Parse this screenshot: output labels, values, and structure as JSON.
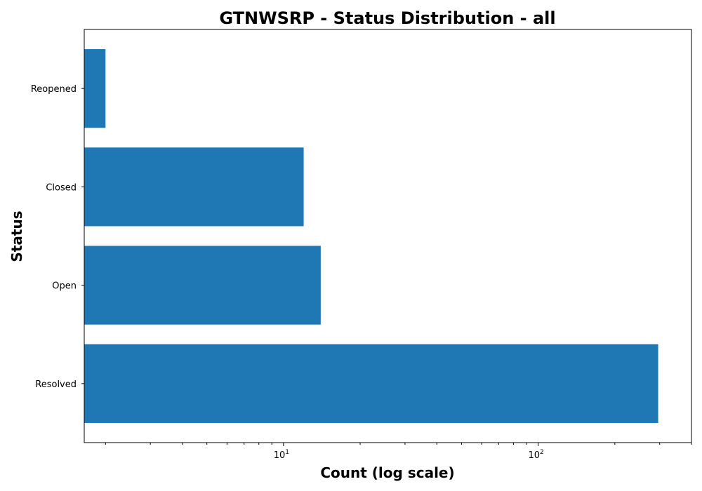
{
  "chart_data": {
    "type": "bar",
    "orientation": "horizontal",
    "title": "GTNWSRP - Status Distribution - all",
    "xlabel": "Count (log scale)",
    "ylabel": "Status",
    "x_scale": "log",
    "xlim": [
      1.65,
      400
    ],
    "categories": [
      "Resolved",
      "Open",
      "Closed",
      "Reopened"
    ],
    "values": [
      296,
      14,
      12,
      2
    ],
    "x_ticks": [
      {
        "value": 10,
        "base": "10",
        "exp": "1"
      },
      {
        "value": 100,
        "base": "10",
        "exp": "2"
      }
    ],
    "bar_color": "#1f77b4",
    "grid": false,
    "legend": "none"
  }
}
